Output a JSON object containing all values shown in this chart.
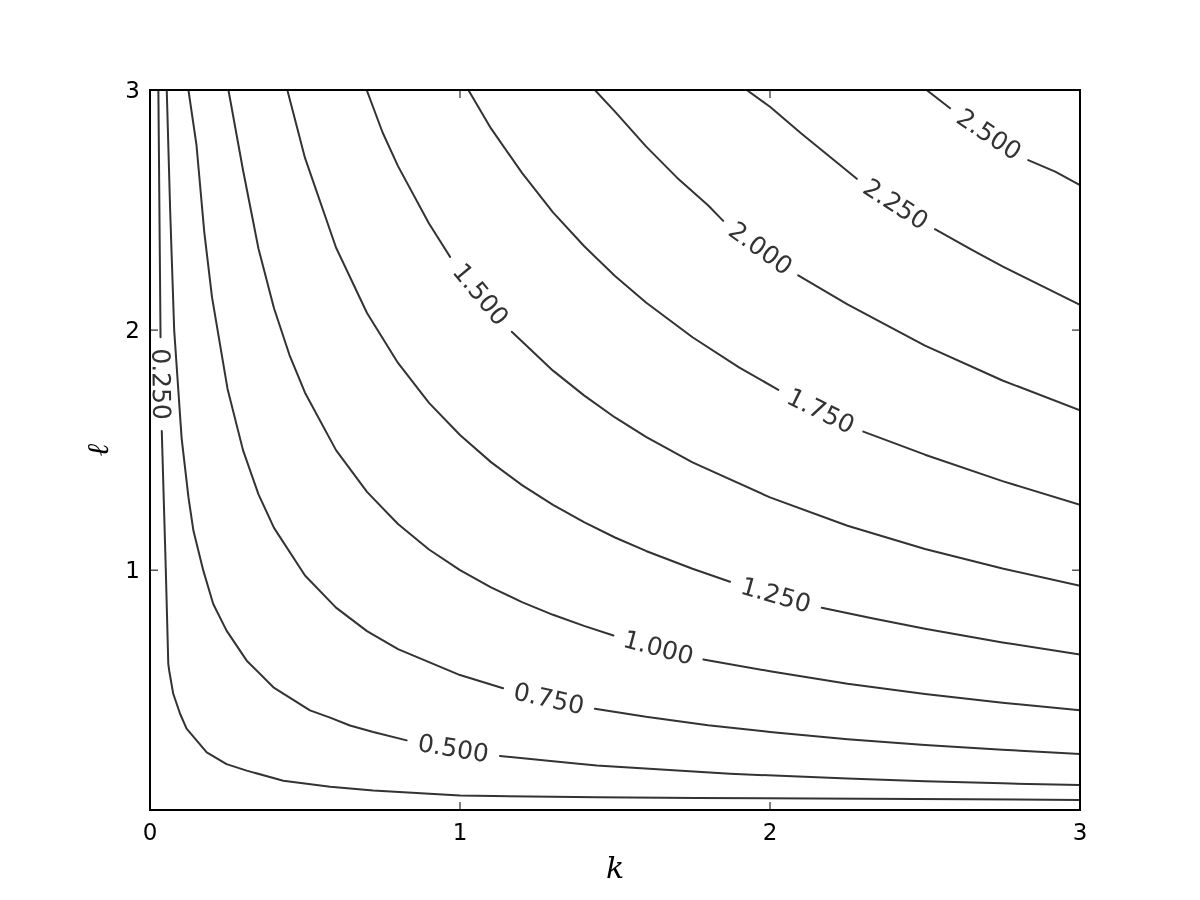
{
  "chart_data": {
    "type": "line",
    "xlabel": "k",
    "ylabel": "ℓ",
    "xlim": [
      0,
      3
    ],
    "ylim": [
      0.001,
      3
    ],
    "xticks": [
      0,
      1,
      2,
      3
    ],
    "yticks": [
      1,
      2,
      3
    ],
    "marker": "none",
    "line_style": "solid",
    "annotations": [
      "0.250",
      "0.500",
      "0.750",
      "1.000",
      "1.250",
      "1.500",
      "1.750",
      "2.000",
      "2.250",
      "2.500"
    ],
    "series": [
      {
        "color": "#333333",
        "x": [
          0.027,
          0.034,
          0.036,
          0.038,
          0.051,
          0.059,
          0.062,
          0.075,
          0.097,
          0.118,
          0.183,
          0.247,
          0.312,
          0.43,
          0.581,
          0.72,
          1,
          1.441,
          1.764,
          3
        ],
        "values": [
          3,
          1.97,
          null,
          1.58,
          1.0,
          0.61,
          0.581,
          0.485,
          0.402,
          0.34,
          0.241,
          0.192,
          0.165,
          0.123,
          0.098,
          0.082,
          0.061,
          0.054,
          0.051,
          0.043
        ]
      },
      {
        "color": "#333333",
        "x": [
          0.054,
          0.065,
          0.078,
          0.102,
          0.124,
          0.14,
          0.172,
          0.204,
          0.247,
          0.312,
          0.398,
          0.516,
          0.581,
          0.645,
          0.72,
          0.828,
          0.98,
          1.129,
          1.441,
          1.871,
          2.25,
          2.5,
          2.75,
          3
        ],
        "values": [
          3,
          2.5,
          2.0,
          1.55,
          1.304,
          1.165,
          0.998,
          0.859,
          0.748,
          0.623,
          0.512,
          0.416,
          0.386,
          0.353,
          0.326,
          0.291,
          null,
          0.226,
          0.186,
          0.152,
          0.132,
          0.121,
          0.112,
          0.105
        ]
      },
      {
        "color": "#333333",
        "x": [
          0.124,
          0.15,
          0.175,
          0.2,
          0.25,
          0.3,
          0.35,
          0.4,
          0.5,
          0.6,
          0.7,
          0.8,
          1,
          1.139,
          1.29,
          1.435,
          1.6,
          1.8,
          2,
          2.25,
          2.5,
          2.75,
          3
        ],
        "values": [
          3,
          2.77,
          2.409,
          2.137,
          1.756,
          1.5,
          1.316,
          1.176,
          0.978,
          0.844,
          0.746,
          0.671,
          0.563,
          0.508,
          null,
          0.423,
          0.389,
          0.354,
          0.326,
          0.296,
          0.272,
          0.252,
          0.234
        ]
      },
      {
        "color": "#333333",
        "x": [
          0.253,
          0.3,
          0.35,
          0.4,
          0.45,
          0.5,
          0.6,
          0.7,
          0.8,
          0.9,
          1,
          1.1,
          1.2,
          1.3,
          1.4,
          1.495,
          1.64,
          1.785,
          2,
          2.25,
          2.5,
          2.75,
          3
        ],
        "values": [
          3,
          2.667,
          2.339,
          2.091,
          1.896,
          1.739,
          1.5,
          1.326,
          1.192,
          1.086,
          1,
          0.928,
          0.867,
          0.814,
          0.768,
          0.728,
          null,
          0.628,
          0.579,
          0.527,
          0.484,
          0.448,
          0.416
        ]
      },
      {
        "color": "#333333",
        "x": [
          0.443,
          0.5,
          0.6,
          0.7,
          0.8,
          0.9,
          1,
          1.1,
          1.2,
          1.3,
          1.4,
          1.5,
          1.6,
          1.75,
          1.871,
          2.02,
          2.167,
          2.333,
          2.5,
          2.75,
          3
        ],
        "values": [
          3,
          2.717,
          2.344,
          2.071,
          1.863,
          1.697,
          1.563,
          1.45,
          1.354,
          1.272,
          1.2,
          1.136,
          1.08,
          1.006,
          0.952,
          null,
          0.843,
          0.799,
          0.756,
          0.699,
          0.649
        ]
      },
      {
        "color": "#333333",
        "x": [
          0.699,
          0.75,
          0.8,
          0.9,
          0.968,
          1.07,
          1.167,
          1.3,
          1.4,
          1.5,
          1.6,
          1.75,
          2,
          2.25,
          2.5,
          2.75,
          3
        ],
        "values": [
          3,
          2.824,
          2.683,
          2.444,
          2.305,
          null,
          1.993,
          1.831,
          1.728,
          1.636,
          1.555,
          1.449,
          1.303,
          1.185,
          1.088,
          1.007,
          0.935
        ]
      },
      {
        "color": "#333333",
        "x": [
          1.027,
          1.1,
          1.2,
          1.3,
          1.4,
          1.5,
          1.6,
          1.75,
          1.9,
          2.027,
          2.16,
          2.301,
          2.5,
          2.75,
          3
        ],
        "values": [
          3,
          2.84,
          2.655,
          2.49,
          2.35,
          2.225,
          2.115,
          1.97,
          1.845,
          1.751,
          null,
          1.577,
          1.481,
          1.371,
          1.272
        ]
      },
      {
        "color": "#333333",
        "x": [
          1.435,
          1.5,
          1.6,
          1.7,
          1.8,
          1.849,
          1.97,
          2.091,
          2.25,
          2.5,
          2.75,
          3
        ],
        "values": [
          3,
          2.91,
          2.765,
          2.635,
          2.52,
          2.455,
          null,
          2.228,
          2.107,
          1.935,
          1.79,
          1.666
        ]
      },
      {
        "color": "#333333",
        "x": [
          1.925,
          2,
          2.1,
          2.2,
          2.28,
          2.4,
          2.532,
          2.65,
          2.75,
          2.875,
          3
        ],
        "values": [
          3,
          2.93,
          2.82,
          2.715,
          2.63,
          null,
          2.42,
          2.335,
          2.265,
          2.185,
          2.105
        ]
      },
      {
        "color": "#333333",
        "x": [
          2.505,
          2.581,
          2.7,
          2.833,
          2.92,
          3
        ],
        "values": [
          3,
          2.924,
          null,
          2.708,
          2.66,
          2.604
        ]
      }
    ]
  }
}
